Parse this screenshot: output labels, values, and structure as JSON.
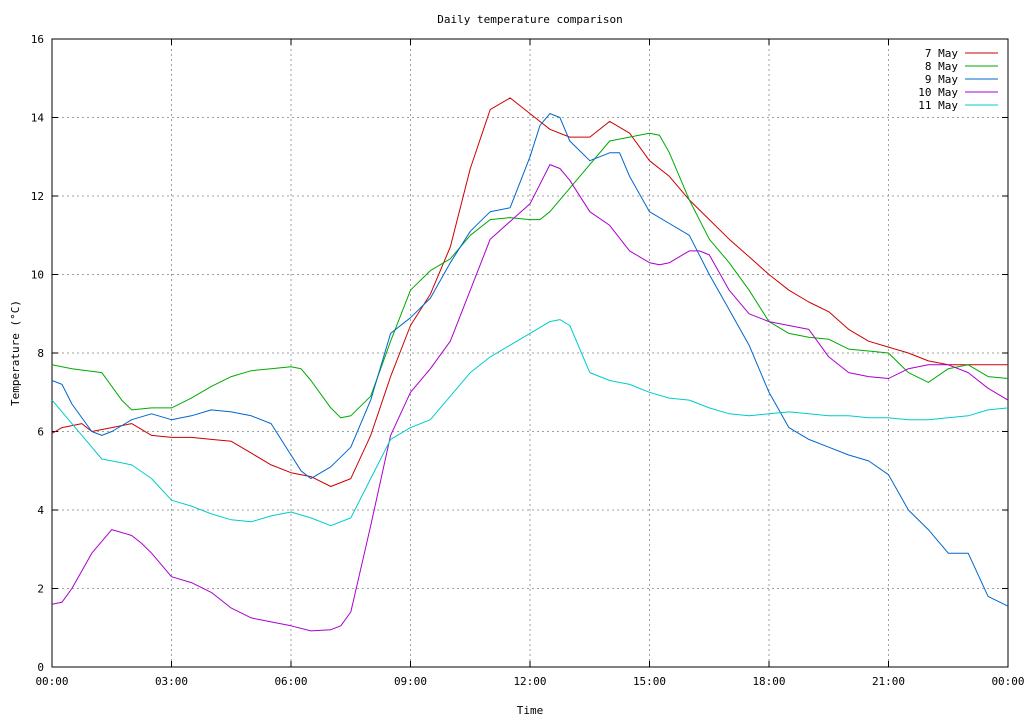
{
  "chart_data": {
    "type": "line",
    "title": "Daily temperature comparison",
    "xlabel": "Time",
    "ylabel": "Temperature (°C)",
    "xlim": [
      0,
      24
    ],
    "ylim": [
      0,
      16
    ],
    "xticks": [
      0,
      3,
      6,
      9,
      12,
      15,
      18,
      21,
      24
    ],
    "xtick_labels": [
      "00:00",
      "03:00",
      "06:00",
      "09:00",
      "12:00",
      "15:00",
      "18:00",
      "21:00",
      "00:00"
    ],
    "yticks": [
      0,
      2,
      4,
      6,
      8,
      10,
      12,
      14,
      16
    ],
    "ytick_labels": [
      "0",
      "2",
      "4",
      "6",
      "8",
      "10",
      "12",
      "14",
      "16"
    ],
    "grid": true,
    "legend": "top-right",
    "series": [
      {
        "name": "7 May",
        "color": "#cc0000",
        "x": [
          0,
          0.25,
          0.75,
          1.0,
          1.5,
          2.0,
          2.5,
          3.0,
          3.5,
          4.0,
          4.5,
          5.0,
          5.5,
          6.0,
          6.5,
          7.0,
          7.5,
          8.0,
          8.5,
          9.0,
          9.5,
          10.0,
          10.5,
          11.0,
          11.5,
          12.0,
          12.5,
          13.0,
          13.5,
          14.0,
          14.5,
          15.0,
          15.5,
          16.0,
          16.5,
          17.0,
          17.5,
          18.0,
          18.5,
          19.0,
          19.5,
          20.0,
          20.5,
          21.0,
          21.5,
          22.0,
          22.5,
          23.0,
          23.5,
          24.0
        ],
        "y": [
          5.95,
          6.1,
          6.2,
          6.0,
          6.1,
          6.2,
          5.9,
          5.85,
          5.85,
          5.8,
          5.75,
          5.45,
          5.15,
          4.95,
          4.85,
          4.6,
          4.8,
          5.9,
          7.4,
          8.7,
          9.5,
          10.7,
          12.7,
          14.2,
          14.5,
          14.1,
          13.7,
          13.5,
          13.5,
          13.9,
          13.6,
          12.9,
          12.5,
          11.9,
          11.4,
          10.9,
          10.45,
          10.0,
          9.6,
          9.3,
          9.05,
          8.6,
          8.3,
          8.15,
          8.0,
          7.8,
          7.7,
          7.7,
          7.7,
          7.7
        ]
      },
      {
        "name": "8 May",
        "color": "#00aa00",
        "x": [
          0,
          0.5,
          1.25,
          1.75,
          2.0,
          2.5,
          3.0,
          3.5,
          4.0,
          4.5,
          5.0,
          5.5,
          6.0,
          6.25,
          6.5,
          7.0,
          7.25,
          7.5,
          8.0,
          8.5,
          9.0,
          9.5,
          10.0,
          10.5,
          11.0,
          11.5,
          12.0,
          12.25,
          12.5,
          13.0,
          13.5,
          14.0,
          14.5,
          15.0,
          15.25,
          15.5,
          16.0,
          16.5,
          17.0,
          17.5,
          18.0,
          18.5,
          19.0,
          19.5,
          20.0,
          20.5,
          21.0,
          21.5,
          22.0,
          22.5,
          23.0,
          23.5,
          24.0
        ],
        "y": [
          7.7,
          7.6,
          7.5,
          6.8,
          6.55,
          6.6,
          6.6,
          6.85,
          7.15,
          7.4,
          7.55,
          7.6,
          7.65,
          7.6,
          7.3,
          6.6,
          6.35,
          6.4,
          6.9,
          8.3,
          9.6,
          10.1,
          10.4,
          11.0,
          11.4,
          11.45,
          11.4,
          11.4,
          11.6,
          12.2,
          12.8,
          13.4,
          13.5,
          13.6,
          13.55,
          13.1,
          11.9,
          10.9,
          10.3,
          9.6,
          8.8,
          8.5,
          8.4,
          8.35,
          8.1,
          8.05,
          8.0,
          7.5,
          7.25,
          7.6,
          7.7,
          7.4,
          7.35
        ]
      },
      {
        "name": "9 May",
        "color": "#0066cc",
        "x": [
          0,
          0.25,
          0.5,
          1.0,
          1.25,
          1.5,
          2.0,
          2.5,
          3.0,
          3.5,
          4.0,
          4.5,
          5.0,
          5.5,
          6.0,
          6.25,
          6.5,
          7.0,
          7.5,
          8.0,
          8.5,
          9.0,
          9.5,
          10.0,
          10.5,
          11.0,
          11.5,
          12.0,
          12.25,
          12.5,
          12.75,
          13.0,
          13.5,
          14.0,
          14.25,
          14.5,
          15.0,
          15.5,
          16.0,
          16.5,
          17.0,
          17.5,
          18.0,
          18.5,
          19.0,
          19.5,
          20.0,
          20.5,
          21.0,
          21.5,
          22.0,
          22.5,
          23.0,
          23.5,
          24.0
        ],
        "y": [
          7.3,
          7.2,
          6.7,
          6.0,
          5.9,
          6.0,
          6.3,
          6.45,
          6.3,
          6.4,
          6.55,
          6.5,
          6.4,
          6.2,
          5.4,
          5.0,
          4.8,
          5.1,
          5.6,
          6.8,
          8.5,
          8.9,
          9.4,
          10.3,
          11.1,
          11.6,
          11.7,
          13.0,
          13.8,
          14.1,
          14.0,
          13.4,
          12.9,
          13.1,
          13.1,
          12.5,
          11.6,
          11.3,
          11.0,
          10.0,
          9.1,
          8.2,
          7.0,
          6.1,
          5.8,
          5.6,
          5.4,
          5.25,
          4.9,
          4.0,
          3.5,
          2.9,
          2.9,
          1.8,
          1.55
        ]
      },
      {
        "name": "10 May",
        "color": "#aa00cc",
        "x": [
          0,
          0.25,
          0.5,
          1.0,
          1.5,
          2.0,
          2.25,
          2.5,
          3.0,
          3.5,
          4.0,
          4.5,
          5.0,
          5.5,
          6.0,
          6.5,
          7.0,
          7.25,
          7.5,
          8.0,
          8.5,
          9.0,
          9.5,
          10.0,
          10.5,
          11.0,
          11.5,
          12.0,
          12.25,
          12.5,
          12.75,
          13.0,
          13.5,
          14.0,
          14.5,
          15.0,
          15.25,
          15.5,
          16.0,
          16.25,
          16.5,
          17.0,
          17.5,
          18.0,
          18.5,
          19.0,
          19.5,
          20.0,
          20.5,
          21.0,
          21.5,
          22.0,
          22.5,
          23.0,
          23.5,
          24.0
        ],
        "y": [
          1.6,
          1.65,
          2.0,
          2.9,
          3.5,
          3.35,
          3.15,
          2.9,
          2.3,
          2.15,
          1.9,
          1.5,
          1.25,
          1.15,
          1.05,
          0.92,
          0.95,
          1.05,
          1.4,
          3.6,
          5.9,
          7.0,
          7.6,
          8.3,
          9.6,
          10.9,
          11.35,
          11.8,
          12.3,
          12.8,
          12.7,
          12.4,
          11.6,
          11.25,
          10.6,
          10.3,
          10.25,
          10.3,
          10.6,
          10.6,
          10.5,
          9.6,
          9.0,
          8.8,
          8.7,
          8.6,
          7.9,
          7.5,
          7.4,
          7.35,
          7.6,
          7.7,
          7.7,
          7.5,
          7.1,
          6.8
        ]
      },
      {
        "name": "11 May",
        "color": "#00cccc",
        "x": [
          0,
          0.5,
          1.0,
          1.25,
          1.5,
          2.0,
          2.5,
          3.0,
          3.5,
          4.0,
          4.5,
          5.0,
          5.5,
          6.0,
          6.5,
          7.0,
          7.5,
          8.0,
          8.5,
          9.0,
          9.5,
          10.0,
          10.5,
          11.0,
          11.5,
          12.0,
          12.5,
          12.75,
          13.0,
          13.5,
          14.0,
          14.5,
          15.0,
          15.5,
          16.0,
          16.5,
          17.0,
          17.5,
          18.0,
          18.5,
          19.0,
          19.5,
          20.0,
          20.5,
          21.0,
          21.5,
          22.0,
          22.5,
          23.0,
          23.5,
          24.0
        ],
        "y": [
          6.8,
          6.2,
          5.6,
          5.3,
          5.25,
          5.15,
          4.8,
          4.25,
          4.1,
          3.9,
          3.75,
          3.7,
          3.85,
          3.95,
          3.8,
          3.6,
          3.8,
          4.8,
          5.8,
          6.1,
          6.3,
          6.9,
          7.5,
          7.9,
          8.2,
          8.5,
          8.8,
          8.85,
          8.7,
          7.5,
          7.3,
          7.2,
          7.0,
          6.85,
          6.8,
          6.6,
          6.45,
          6.4,
          6.45,
          6.5,
          6.45,
          6.4,
          6.4,
          6.35,
          6.35,
          6.3,
          6.3,
          6.35,
          6.4,
          6.55,
          6.6
        ]
      }
    ]
  }
}
